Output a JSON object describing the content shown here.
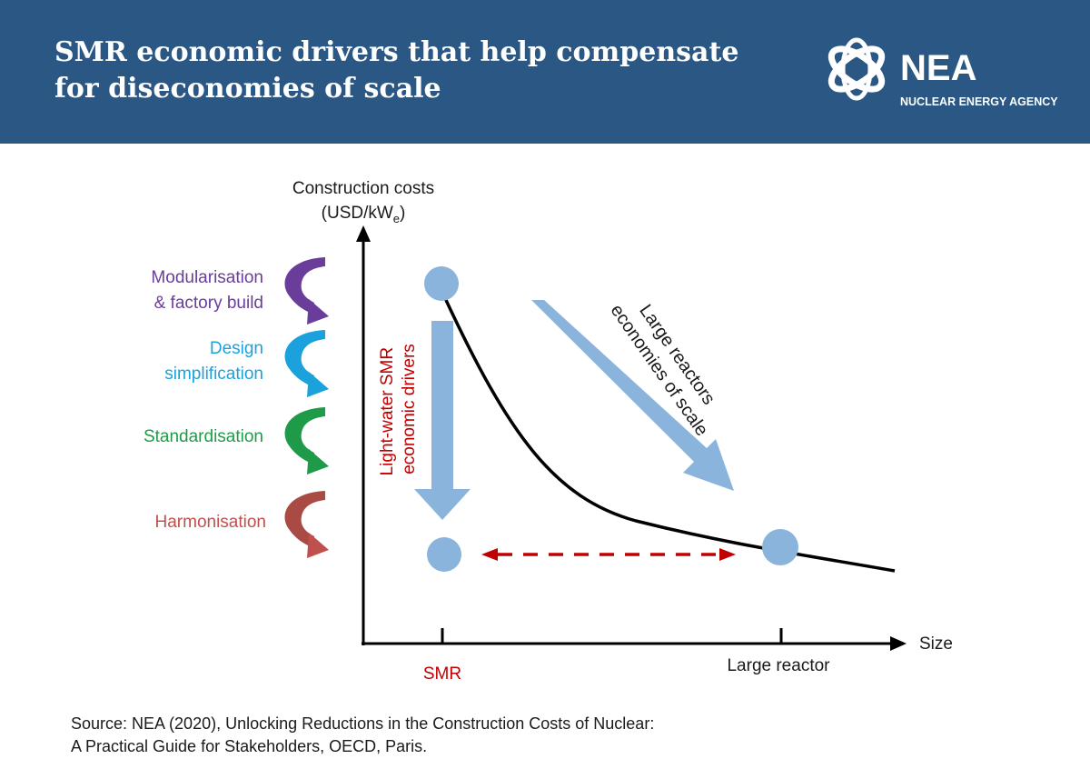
{
  "header": {
    "title_line1": "SMR economic drivers that help compensate",
    "title_line2": "for diseconomies of scale",
    "logo_text": "NEA",
    "logo_subtext": "NUCLEAR ENERGY AGENCY",
    "background_color": "#2a5784"
  },
  "diagram": {
    "y_axis_label_line1": "Construction costs",
    "y_axis_label_prefix": "(USD/kW",
    "y_axis_label_subscript": "e",
    "y_axis_label_suffix": ")",
    "x_axis_label": "Size",
    "x_tick_smr": "SMR",
    "x_tick_large": "Large reactor",
    "smr_drivers_label_line1": "Light-water SMR",
    "smr_drivers_label_line2": "economic drivers",
    "large_label_line1": "Large reactors",
    "large_label_line2": "economies of scale",
    "drivers": [
      {
        "line1": "Modularisation",
        "line2": "& factory build",
        "color": "#6a3d9a"
      },
      {
        "line1": "Design",
        "line2": "simplification",
        "color": "#1ba1dc"
      },
      {
        "line1": "Standardisation",
        "line2": "",
        "color": "#1f9a48"
      },
      {
        "line1": "Harmonisation",
        "line2": "",
        "color": "#c0504d"
      }
    ],
    "colors": {
      "marker": "#8ab4dc",
      "arrow": "#8ab4dc",
      "curve": "#000000",
      "dashed_arrow": "#c00000",
      "smr_label": "#c00000"
    }
  },
  "source": {
    "line1": "Source: NEA (2020), Unlocking Reductions in the Construction Costs of Nuclear:",
    "line2": "A Practical Guide for Stakeholders, OECD, Paris."
  }
}
